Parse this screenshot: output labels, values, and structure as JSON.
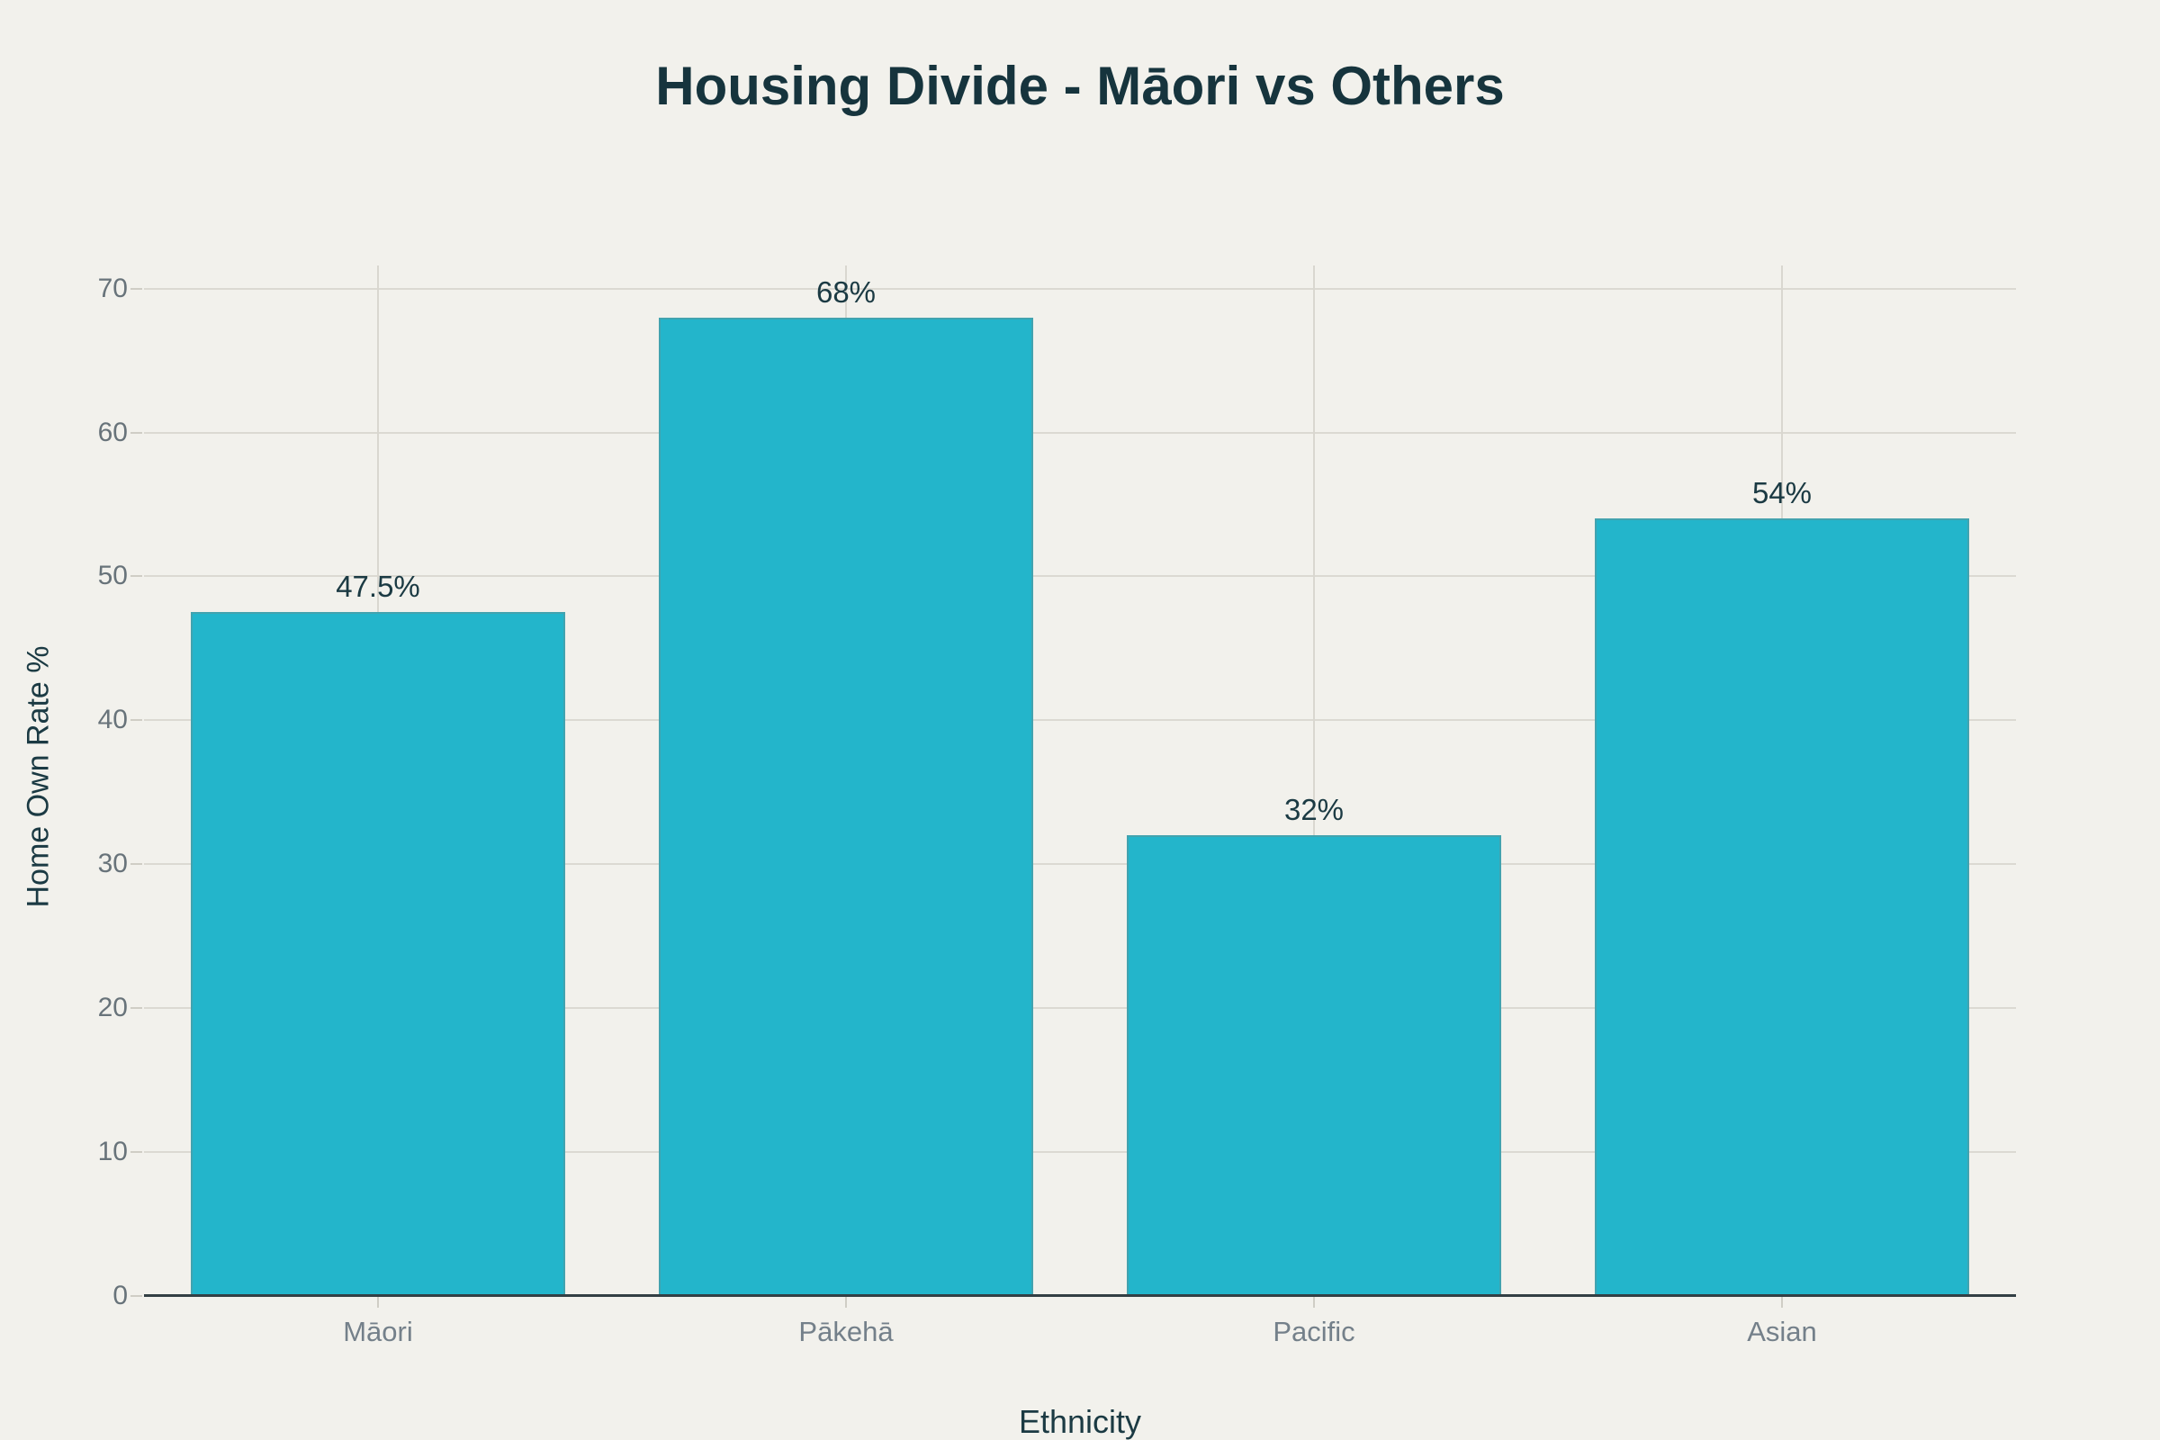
{
  "chart_data": {
    "type": "bar",
    "title": "Housing Divide - Māori vs Others",
    "xlabel": "Ethnicity",
    "ylabel": "Home Own Rate %",
    "categories": [
      "Māori",
      "Pākehā",
      "Pacific",
      "Asian"
    ],
    "values": [
      47.5,
      68,
      32,
      54
    ],
    "value_labels": [
      "47.5%",
      "68%",
      "32%",
      "54%"
    ],
    "yticks": [
      0,
      10,
      20,
      30,
      40,
      50,
      60,
      70
    ],
    "ylim": [
      0,
      71.6
    ],
    "grid": true,
    "legend": "none",
    "bar_color": "#23b5cb",
    "background_color": "#f2f1ec",
    "grid_color": "#dbd9d2",
    "axis_line_color": "#333f44",
    "tick_label_color": "#68737a",
    "text_color": "#1b3a43",
    "title_color": "#16343d"
  }
}
